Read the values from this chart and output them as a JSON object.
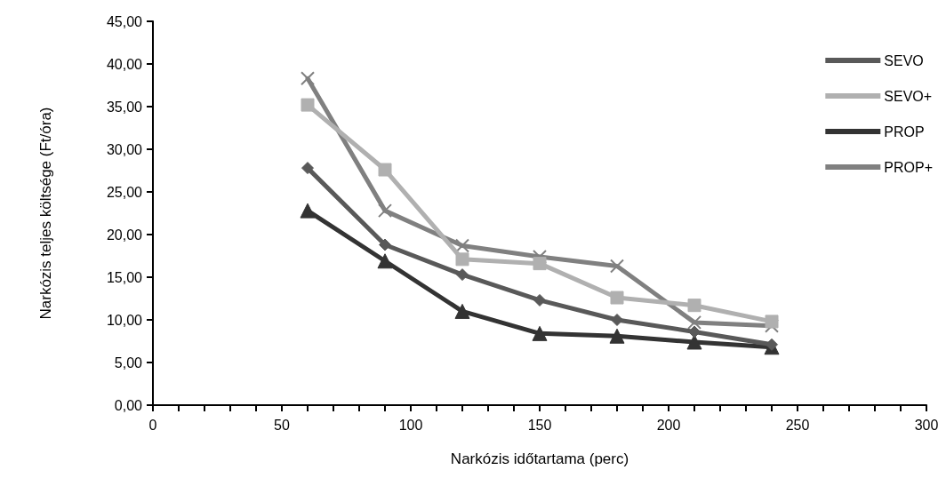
{
  "chart_data": {
    "type": "line",
    "xlabel": "Narkózis időtartama (perc)",
    "ylabel": "Narkózis teljes költsége (Ft/óra)",
    "x": [
      60,
      90,
      120,
      150,
      180,
      210,
      240
    ],
    "series": [
      {
        "name": "SEVO",
        "color": "#595959",
        "marker": "diamond",
        "values": [
          27.8,
          18.8,
          15.3,
          12.3,
          10.0,
          8.6,
          7.1
        ]
      },
      {
        "name": "SEVO+",
        "color": "#b0b0b0",
        "marker": "square",
        "values": [
          35.2,
          27.6,
          17.1,
          16.6,
          12.6,
          11.7,
          9.8
        ]
      },
      {
        "name": "PROP",
        "color": "#333333",
        "marker": "triangle",
        "values": [
          22.8,
          16.9,
          11.0,
          8.4,
          8.1,
          7.4,
          6.8
        ]
      },
      {
        "name": "PROP+",
        "color": "#808080",
        "marker": "cross",
        "values": [
          38.3,
          22.8,
          18.7,
          17.4,
          16.3,
          9.7,
          9.3
        ]
      }
    ],
    "xlim": [
      0,
      300
    ],
    "xticks": [
      0,
      {
        "value": 10,
        "label": null
      },
      {
        "value": 20,
        "label": null
      },
      {
        "value": 30,
        "label": null
      },
      {
        "value": 40,
        "label": null
      },
      50,
      {
        "value": 60,
        "label": null
      },
      {
        "value": 70,
        "label": null
      },
      {
        "value": 80,
        "label": null
      },
      {
        "value": 90,
        "label": null
      },
      100,
      {
        "value": 110,
        "label": null
      },
      {
        "value": 120,
        "label": null
      },
      {
        "value": 130,
        "label": null
      },
      {
        "value": 140,
        "label": null
      },
      150,
      {
        "value": 160,
        "label": null
      },
      {
        "value": 170,
        "label": null
      },
      {
        "value": 180,
        "label": null
      },
      {
        "value": 190,
        "label": null
      },
      200,
      {
        "value": 210,
        "label": null
      },
      {
        "value": 220,
        "label": null
      },
      {
        "value": 230,
        "label": null
      },
      {
        "value": 240,
        "label": null
      },
      250,
      {
        "value": 260,
        "label": null
      },
      {
        "value": 270,
        "label": null
      },
      {
        "value": 280,
        "label": null
      },
      {
        "value": 290,
        "label": null
      },
      300
    ],
    "ylim": [
      0,
      45
    ],
    "yticks": [
      {
        "value": 0,
        "label": "0,00"
      },
      {
        "value": 5,
        "label": "5,00"
      },
      {
        "value": 10,
        "label": "10,00"
      },
      {
        "value": 15,
        "label": "15,00"
      },
      {
        "value": 20,
        "label": "20,00"
      },
      {
        "value": 25,
        "label": "25,00"
      },
      {
        "value": 30,
        "label": "30,00"
      },
      {
        "value": 35,
        "label": "35,00"
      },
      {
        "value": 40,
        "label": "40,00"
      },
      {
        "value": 45,
        "label": "45,00"
      }
    ],
    "grid": false,
    "legend": "right",
    "line_style": "solid"
  }
}
